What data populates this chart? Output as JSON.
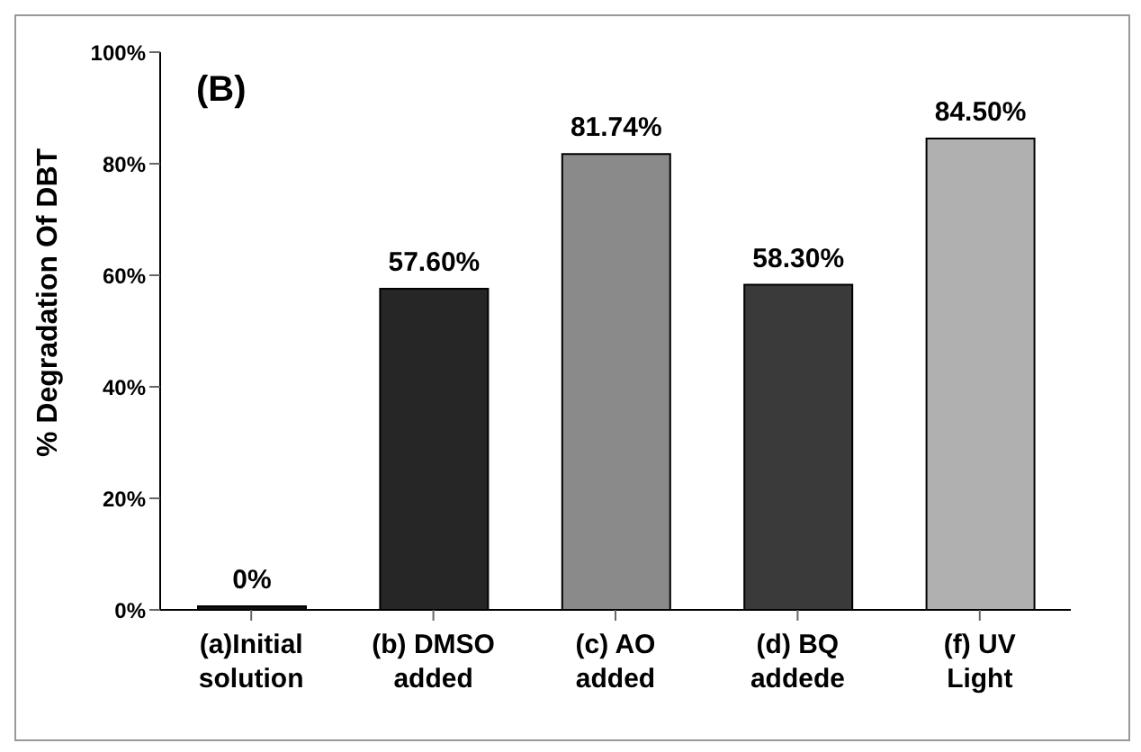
{
  "chart_data": {
    "type": "bar",
    "ylabel": "% Degradation Of DBT",
    "annotations": [
      "(B)"
    ],
    "categories": [
      "(a)Initial\nsolution",
      "(b) DMSO\nadded",
      "(c) AO\nadded",
      "(d) BQ\naddede",
      "(f) UV\nLight"
    ],
    "values": [
      0,
      57.6,
      81.74,
      58.3,
      84.5
    ],
    "colors": [
      "#111111",
      "#262626",
      "#8a8a8a",
      "#3a3a3a",
      "#b0b0b0"
    ],
    "value_labels": [
      "0%",
      "57.60%",
      "81.74%",
      "58.30%",
      "84.50%"
    ],
    "ylim": [
      0,
      100
    ],
    "yticks": [
      {
        "value": 0,
        "label": "0%"
      },
      {
        "value": 20,
        "label": "20%"
      },
      {
        "value": 40,
        "label": "40%"
      },
      {
        "value": 60,
        "label": "60%"
      },
      {
        "value": 80,
        "label": "80%"
      },
      {
        "value": 100,
        "label": "100%"
      }
    ],
    "grid": false
  }
}
